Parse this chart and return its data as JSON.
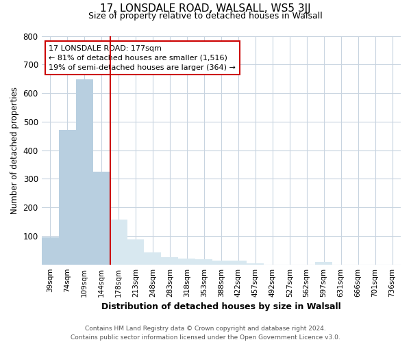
{
  "title1": "17, LONSDALE ROAD, WALSALL, WS5 3JJ",
  "title2": "Size of property relative to detached houses in Walsall",
  "xlabel": "Distribution of detached houses by size in Walsall",
  "ylabel": "Number of detached properties",
  "categories": [
    "39sqm",
    "74sqm",
    "109sqm",
    "144sqm",
    "178sqm",
    "213sqm",
    "248sqm",
    "283sqm",
    "318sqm",
    "353sqm",
    "388sqm",
    "422sqm",
    "457sqm",
    "492sqm",
    "527sqm",
    "562sqm",
    "597sqm",
    "631sqm",
    "666sqm",
    "701sqm",
    "736sqm"
  ],
  "values": [
    95,
    470,
    648,
    325,
    158,
    88,
    42,
    26,
    20,
    18,
    14,
    13,
    5,
    0,
    0,
    0,
    8,
    0,
    0,
    0,
    0
  ],
  "bar_color_left": "#b8cfe0",
  "bar_color_right": "#d8e8f0",
  "red_line_index": 4,
  "annotation_line1": "17 LONSDALE ROAD: 177sqm",
  "annotation_line2": "← 81% of detached houses are smaller (1,516)",
  "annotation_line3": "19% of semi-detached houses are larger (364) →",
  "annotation_box_color": "#cc0000",
  "ylim": [
    0,
    800
  ],
  "yticks": [
    0,
    100,
    200,
    300,
    400,
    500,
    600,
    700,
    800
  ],
  "footer_line1": "Contains HM Land Registry data © Crown copyright and database right 2024.",
  "footer_line2": "Contains public sector information licensed under the Open Government Licence v3.0.",
  "fig_bg": "#ffffff",
  "plot_bg": "#ffffff",
  "grid_color": "#c8d4e0"
}
